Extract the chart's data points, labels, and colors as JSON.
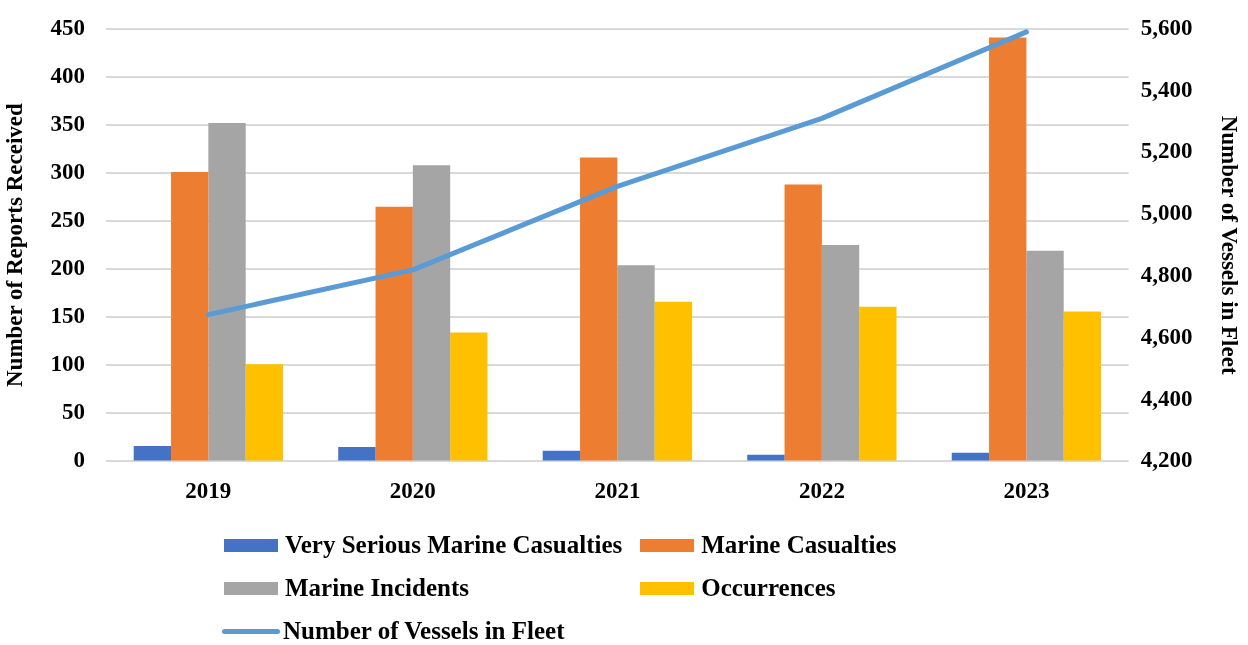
{
  "chart_data": {
    "type": "bar",
    "categories": [
      "2019",
      "2020",
      "2021",
      "2022",
      "2023"
    ],
    "series": [
      {
        "name": "Very Serious Marine Casualties",
        "color": "#4472c4",
        "values": [
          16,
          15,
          11,
          7,
          9
        ]
      },
      {
        "name": "Marine Casualties",
        "color": "#ed7d31",
        "values": [
          301,
          265,
          316,
          288,
          441
        ]
      },
      {
        "name": "Marine Incidents",
        "color": "#a5a5a5",
        "values": [
          352,
          308,
          204,
          225,
          219
        ]
      },
      {
        "name": "Occurrences",
        "color": "#ffc000",
        "values": [
          101,
          134,
          166,
          161,
          156
        ]
      },
      {
        "name": "Number of Vessels in Fleet",
        "type": "line",
        "axis": "y2",
        "color": "#5b9bd5",
        "values": [
          4675,
          4820,
          5090,
          5310,
          5590
        ]
      }
    ],
    "ylabel": "Number of Reports Received",
    "y2label": "Number of Vessels in Fleet",
    "ylim": [
      0,
      450
    ],
    "yticks": [
      0,
      50,
      100,
      150,
      200,
      250,
      300,
      350,
      400,
      450
    ],
    "y2lim": [
      4200,
      5600
    ],
    "y2ticks": [
      {
        "value": 4200,
        "label": "4,200"
      },
      {
        "value": 4400,
        "label": "4,400"
      },
      {
        "value": 4600,
        "label": "4,600"
      },
      {
        "value": 4800,
        "label": "4,800"
      },
      {
        "value": 5000,
        "label": "5,000"
      },
      {
        "value": 5200,
        "label": "5,200"
      },
      {
        "value": 5400,
        "label": "5,400"
      },
      {
        "value": 5600,
        "label": "5,600"
      }
    ],
    "grid": "y",
    "legend": "bottom"
  }
}
